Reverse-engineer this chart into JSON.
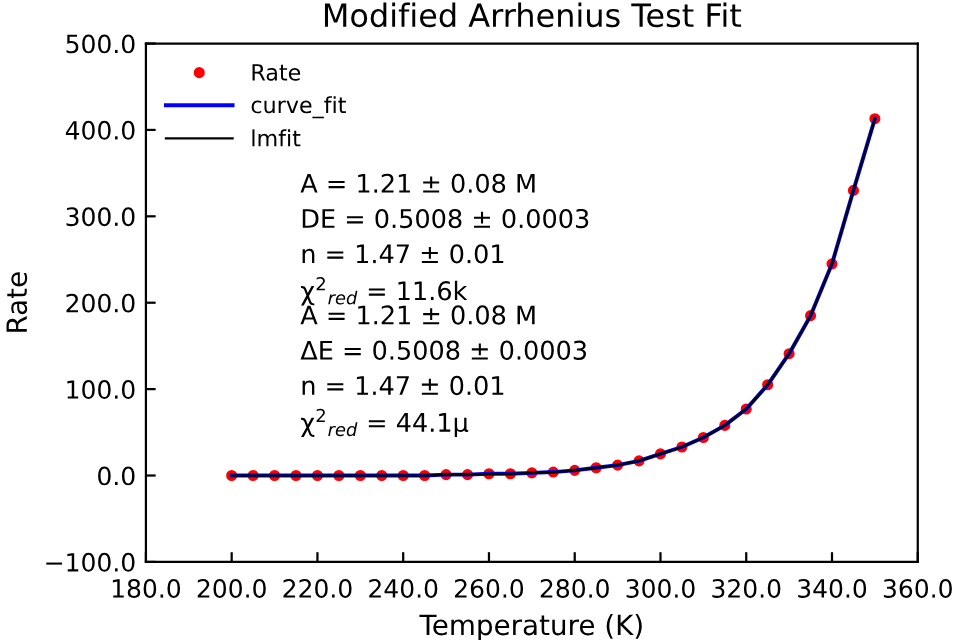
{
  "chart_data": {
    "type": "scatter",
    "title": "Modified Arrhenius Test Fit",
    "xlabel": "Temperature (K)",
    "ylabel": "Rate",
    "x": [
      200,
      205,
      210,
      215,
      220,
      225,
      230,
      235,
      240,
      245,
      250,
      255,
      260,
      265,
      270,
      275,
      280,
      285,
      290,
      295,
      300,
      305,
      310,
      315,
      320,
      325,
      330,
      335,
      340,
      345,
      350
    ],
    "series": [
      {
        "name": "Rate",
        "color": "#ff0000",
        "marker": "circle",
        "values": [
          0,
          0,
          0,
          0,
          0,
          0,
          0,
          0,
          0,
          0,
          1,
          1,
          2,
          2,
          3,
          4,
          6,
          9,
          12,
          17,
          25,
          33,
          44,
          58,
          77,
          105,
          141,
          185,
          245,
          330,
          413
        ]
      },
      {
        "name": "curve_fit",
        "type": "line",
        "color": "#0000ff",
        "values": [
          0,
          0,
          0,
          0,
          0,
          0,
          0,
          0,
          0,
          0,
          1,
          1,
          2,
          2,
          3,
          4,
          6,
          9,
          12,
          17,
          25,
          33,
          44,
          58,
          77,
          105,
          141,
          185,
          245,
          330,
          413
        ]
      },
      {
        "name": "lmfit",
        "type": "line",
        "color": "#000000",
        "values": [
          0,
          0,
          0,
          0,
          0,
          0,
          0,
          0,
          0,
          0,
          1,
          1,
          2,
          2,
          3,
          4,
          6,
          9,
          12,
          17,
          25,
          33,
          44,
          58,
          77,
          105,
          141,
          185,
          245,
          330,
          413
        ]
      }
    ],
    "xlim": [
      180,
      360
    ],
    "xticks": [
      {
        "value": 180,
        "label": "180.0"
      },
      {
        "value": 200,
        "label": "200.0"
      },
      {
        "value": 220,
        "label": "220.0"
      },
      {
        "value": 240,
        "label": "240.0"
      },
      {
        "value": 260,
        "label": "260.0"
      },
      {
        "value": 280,
        "label": "280.0"
      },
      {
        "value": 300,
        "label": "300.0"
      },
      {
        "value": 320,
        "label": "320.0"
      },
      {
        "value": 340,
        "label": "340.0"
      },
      {
        "value": 360,
        "label": "360.0"
      }
    ],
    "ylim": [
      -100,
      500
    ],
    "yticks": [
      {
        "value": -100,
        "label": "−100.0"
      },
      {
        "value": 0,
        "label": "0.0"
      },
      {
        "value": 100,
        "label": "100.0"
      },
      {
        "value": 200,
        "label": "200.0"
      },
      {
        "value": 300,
        "label": "300.0"
      },
      {
        "value": 400,
        "label": "400.0"
      },
      {
        "value": 500,
        "label": "500.0"
      }
    ],
    "grid": false,
    "legend": "top left",
    "annotations": [
      "A = 1.21 ± 0.08 M",
      "DE = 0.5008 ± 0.0003",
      "n = 1.47 ± 0.01",
      "χ$^{2}$$_{red}$ = 11.6k",
      "A = 1.21 ± 0.08 M",
      "ΔE = 0.5008 ± 0.0003",
      "n = 1.47 ± 0.01",
      "χ$^{2}$$_{red}$ = 44.1μ"
    ]
  }
}
